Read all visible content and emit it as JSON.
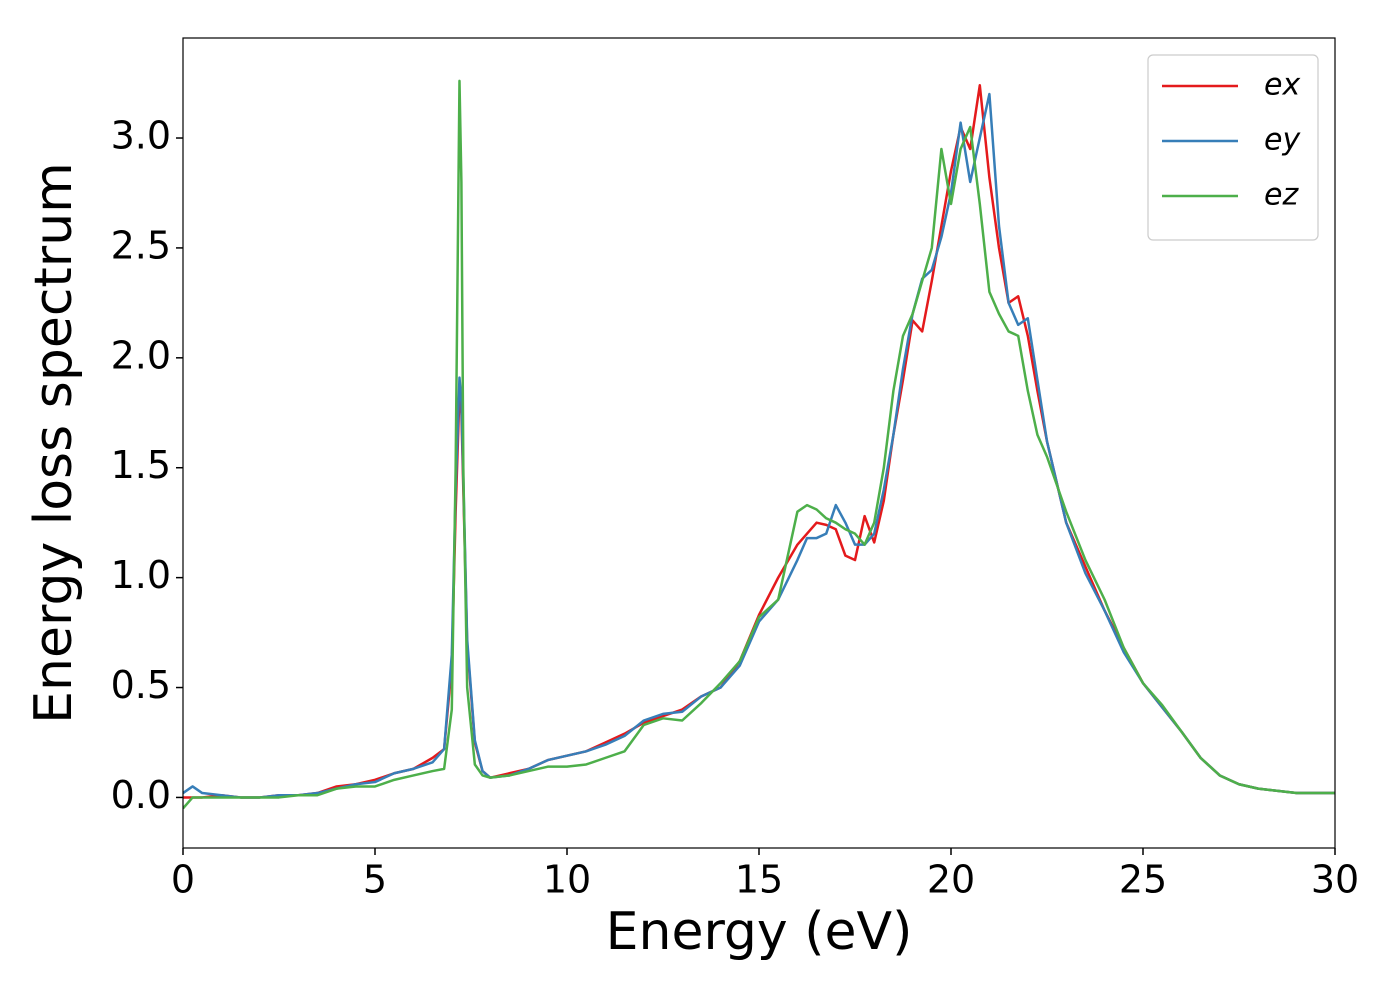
{
  "chart_data": {
    "type": "line",
    "xlabel": "Energy (eV)",
    "ylabel": "Energy loss spectrum",
    "x": [
      0,
      0.25,
      0.5,
      1,
      1.5,
      2,
      2.5,
      3,
      3.5,
      4,
      4.5,
      5,
      5.5,
      6,
      6.5,
      6.8,
      7.0,
      7.1,
      7.2,
      7.25,
      7.3,
      7.4,
      7.6,
      7.8,
      8,
      8.5,
      9,
      9.5,
      10,
      10.5,
      11,
      11.5,
      12,
      12.5,
      13,
      13.5,
      14,
      14.5,
      15,
      15.5,
      16,
      16.25,
      16.5,
      16.75,
      17,
      17.25,
      17.5,
      17.75,
      18,
      18.25,
      18.5,
      18.75,
      19,
      19.25,
      19.5,
      19.75,
      20,
      20.25,
      20.5,
      20.75,
      21,
      21.25,
      21.5,
      21.75,
      22,
      22.25,
      22.5,
      23,
      23.5,
      24,
      24.5,
      25,
      25.5,
      26,
      26.5,
      27,
      27.5,
      28,
      29,
      30
    ],
    "series": [
      {
        "name": "ex",
        "color": "#e41a1c",
        "values": [
          0,
          0,
          0,
          0.01,
          0,
          0,
          0.01,
          0.01,
          0.02,
          0.05,
          0.06,
          0.08,
          0.11,
          0.13,
          0.18,
          0.22,
          0.6,
          1.3,
          1.84,
          1.75,
          1.4,
          0.7,
          0.25,
          0.12,
          0.09,
          0.11,
          0.13,
          0.17,
          0.19,
          0.21,
          0.25,
          0.29,
          0.34,
          0.37,
          0.4,
          0.46,
          0.5,
          0.62,
          0.83,
          1.0,
          1.15,
          1.2,
          1.25,
          1.24,
          1.22,
          1.1,
          1.08,
          1.28,
          1.16,
          1.35,
          1.65,
          1.9,
          2.17,
          2.12,
          2.35,
          2.6,
          2.85,
          3.05,
          2.95,
          3.24,
          2.82,
          2.5,
          2.25,
          2.28,
          2.1,
          1.85,
          1.62,
          1.25,
          1.05,
          0.85,
          0.68,
          0.52,
          0.41,
          0.3,
          0.18,
          0.1,
          0.06,
          0.04,
          0.02,
          0.02
        ]
      },
      {
        "name": "ey",
        "color": "#377eb8",
        "values": [
          0.02,
          0.05,
          0.02,
          0.01,
          0,
          0,
          0.01,
          0.01,
          0.02,
          0.04,
          0.06,
          0.07,
          0.11,
          0.13,
          0.16,
          0.22,
          0.65,
          1.4,
          1.91,
          1.8,
          1.45,
          0.72,
          0.26,
          0.12,
          0.09,
          0.1,
          0.13,
          0.17,
          0.19,
          0.21,
          0.24,
          0.28,
          0.35,
          0.38,
          0.39,
          0.46,
          0.5,
          0.6,
          0.8,
          0.9,
          1.08,
          1.18,
          1.18,
          1.2,
          1.33,
          1.25,
          1.15,
          1.15,
          1.2,
          1.4,
          1.65,
          1.95,
          2.2,
          2.36,
          2.4,
          2.55,
          2.75,
          3.07,
          2.8,
          3.0,
          3.2,
          2.6,
          2.25,
          2.15,
          2.18,
          1.9,
          1.62,
          1.25,
          1.02,
          0.85,
          0.66,
          0.52,
          0.41,
          0.3,
          0.18,
          0.1,
          0.06,
          0.04,
          0.02,
          0.02
        ]
      },
      {
        "name": "ez",
        "color": "#4daf4a",
        "values": [
          -0.05,
          0,
          0,
          0,
          0,
          0,
          0,
          0.01,
          0.01,
          0.04,
          0.05,
          0.05,
          0.08,
          0.1,
          0.12,
          0.13,
          0.4,
          1.5,
          3.26,
          2.8,
          1.5,
          0.5,
          0.15,
          0.1,
          0.09,
          0.1,
          0.12,
          0.14,
          0.14,
          0.15,
          0.18,
          0.21,
          0.33,
          0.36,
          0.35,
          0.43,
          0.52,
          0.62,
          0.82,
          0.9,
          1.3,
          1.33,
          1.31,
          1.27,
          1.25,
          1.22,
          1.2,
          1.15,
          1.25,
          1.5,
          1.85,
          2.1,
          2.2,
          2.35,
          2.5,
          2.95,
          2.7,
          2.95,
          3.05,
          2.7,
          2.3,
          2.2,
          2.12,
          2.1,
          1.85,
          1.65,
          1.55,
          1.3,
          1.08,
          0.9,
          0.68,
          0.52,
          0.42,
          0.3,
          0.18,
          0.1,
          0.06,
          0.04,
          0.02,
          0.02
        ]
      }
    ],
    "xlim": [
      0,
      30
    ],
    "xticks": [
      0,
      5,
      10,
      15,
      20,
      25,
      30
    ],
    "ylim": [
      -0.23,
      3.455
    ],
    "yticks": [
      {
        "value": 0,
        "label": "0.0"
      },
      0.5,
      {
        "value": 1,
        "label": "1.0"
      },
      1.5,
      {
        "value": 2,
        "label": "2.0"
      },
      2.5,
      {
        "value": 3,
        "label": "3.0"
      }
    ],
    "legend": "upper right",
    "grid": false
  }
}
